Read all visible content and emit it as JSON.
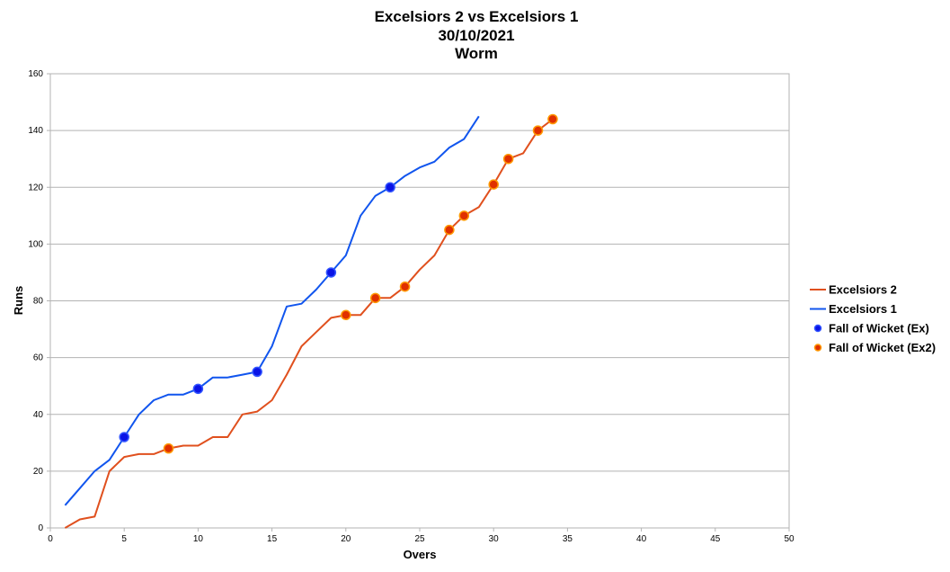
{
  "chart_data": {
    "type": "line",
    "title": "Excelsiors 2 vs Excelsiors 1",
    "subtitle": "30/10/2021",
    "subtitle2": "Worm",
    "xlabel": "Overs",
    "ylabel": "Runs",
    "xlim": [
      0,
      50
    ],
    "ylim": [
      0,
      160
    ],
    "x_ticks": [
      "0",
      "5",
      "10",
      "15",
      "20",
      "25",
      "30",
      "35",
      "40",
      "45",
      "50"
    ],
    "y_ticks": [
      "0",
      "20",
      "40",
      "60",
      "80",
      "100",
      "120",
      "140",
      "160"
    ],
    "grid": true,
    "legend_position": "right",
    "series": [
      {
        "name": "Excelsiors 2",
        "kind": "line",
        "color": "#e0501e",
        "points": [
          [
            1,
            0
          ],
          [
            2,
            3
          ],
          [
            3,
            4
          ],
          [
            4,
            20
          ],
          [
            5,
            25
          ],
          [
            6,
            26
          ],
          [
            7,
            26
          ],
          [
            8,
            28
          ],
          [
            9,
            29
          ],
          [
            10,
            29
          ],
          [
            11,
            32
          ],
          [
            12,
            32
          ],
          [
            13,
            40
          ],
          [
            14,
            41
          ],
          [
            15,
            45
          ],
          [
            16,
            54
          ],
          [
            17,
            64
          ],
          [
            18,
            69
          ],
          [
            19,
            74
          ],
          [
            20,
            75
          ],
          [
            21,
            75
          ],
          [
            22,
            81
          ],
          [
            23,
            81
          ],
          [
            24,
            85
          ],
          [
            25,
            91
          ],
          [
            26,
            96
          ],
          [
            27,
            105
          ],
          [
            28,
            110
          ],
          [
            29,
            113
          ],
          [
            30,
            121
          ],
          [
            31,
            130
          ],
          [
            32,
            132
          ],
          [
            33,
            140
          ],
          [
            34,
            144
          ]
        ]
      },
      {
        "name": "Excelsiors 1",
        "kind": "line",
        "color": "#1155ee",
        "points": [
          [
            1,
            8
          ],
          [
            2,
            14
          ],
          [
            3,
            20
          ],
          [
            4,
            24
          ],
          [
            5,
            32
          ],
          [
            6,
            40
          ],
          [
            7,
            45
          ],
          [
            8,
            47
          ],
          [
            9,
            47
          ],
          [
            10,
            49
          ],
          [
            11,
            53
          ],
          [
            12,
            53
          ],
          [
            13,
            54
          ],
          [
            14,
            55
          ],
          [
            15,
            64
          ],
          [
            16,
            78
          ],
          [
            17,
            79
          ],
          [
            18,
            84
          ],
          [
            19,
            90
          ],
          [
            20,
            96
          ],
          [
            21,
            110
          ],
          [
            22,
            117
          ],
          [
            23,
            120
          ],
          [
            24,
            124
          ],
          [
            25,
            127
          ],
          [
            26,
            129
          ],
          [
            27,
            134
          ],
          [
            28,
            137
          ],
          [
            29,
            145
          ]
        ]
      },
      {
        "name": "Fall of Wicket (Ex)",
        "kind": "scatter",
        "fill": "#0a14e6",
        "stroke": "#3355ff",
        "points": [
          [
            5,
            32
          ],
          [
            10,
            49
          ],
          [
            14,
            55
          ],
          [
            19,
            90
          ],
          [
            23,
            120
          ]
        ]
      },
      {
        "name": "Fall of Wicket (Ex2)",
        "kind": "scatter",
        "fill": "#e03000",
        "stroke": "#ff9900",
        "points": [
          [
            8,
            28
          ],
          [
            20,
            75
          ],
          [
            22,
            81
          ],
          [
            24,
            85
          ],
          [
            27,
            105
          ],
          [
            28,
            110
          ],
          [
            30,
            121
          ],
          [
            31,
            130
          ],
          [
            33,
            140
          ],
          [
            34,
            144
          ]
        ]
      }
    ]
  }
}
